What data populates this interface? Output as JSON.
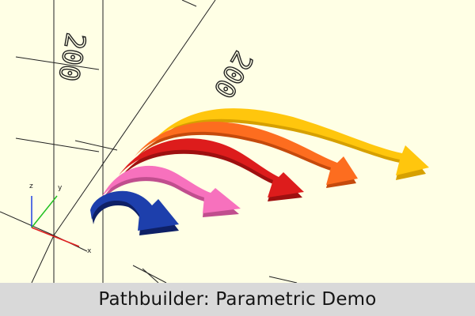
{
  "caption": "Pathbuilder: Parametric Demo",
  "axes": {
    "x_label": "x",
    "y_label": "y",
    "z_label": "z",
    "x_color": "#e02020",
    "y_color": "#20c020",
    "z_color": "#2040e0"
  },
  "ruler_labels": {
    "left": "200",
    "right": "200"
  },
  "arrows": [
    {
      "name": "yellow",
      "color": "#ffc60d",
      "side": "#d6a000"
    },
    {
      "name": "orange",
      "color": "#fd6d1f",
      "side": "#c54a0c"
    },
    {
      "name": "red",
      "color": "#dd1c1c",
      "side": "#9e1010"
    },
    {
      "name": "pink",
      "color": "#f771bd",
      "side": "#c04e8e"
    },
    {
      "name": "blue",
      "color": "#1d3fac",
      "side": "#0e2066"
    }
  ],
  "colors": {
    "background": "#ffffe5",
    "caption_bar": "#d9d9d9",
    "grid": "#222222"
  }
}
